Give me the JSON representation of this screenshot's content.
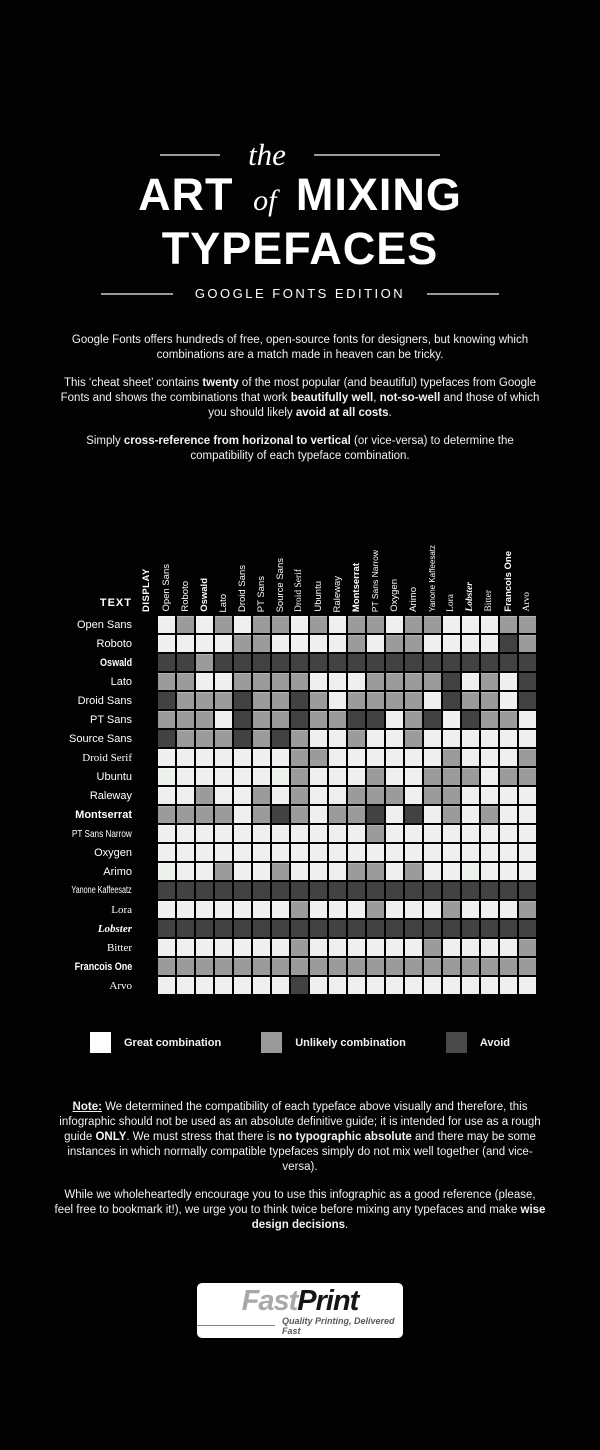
{
  "title": {
    "pre": "the",
    "art": "ART",
    "of": "of",
    "mixing": "MIXING",
    "line2": "TYPEFACES",
    "subtitle": "GOOGLE FONTS EDITION"
  },
  "intro": {
    "p1": [
      {
        "t": "Google Fonts offers hundreds of free, open-source fonts for designers, but knowing which combinations are a match made in heaven can be tricky."
      }
    ],
    "p2": [
      {
        "t": "This ‘cheat sheet’ contains "
      },
      {
        "t": "twenty",
        "b": 1
      },
      {
        "t": " of the most popular (and beautiful) typefaces from Google Fonts and shows the combinations that work "
      },
      {
        "t": "beautifully well",
        "b": 1
      },
      {
        "t": ", "
      },
      {
        "t": "not-so-well",
        "b": 1
      },
      {
        "t": " and those of which you should likely "
      },
      {
        "t": "avoid at all costs",
        "b": 1
      },
      {
        "t": "."
      }
    ],
    "p3": [
      {
        "t": "Simply "
      },
      {
        "t": "cross-reference from horizonal to vertical",
        "b": 1
      },
      {
        "t": " (or vice-versa) to determine the compatibility of each typeface combination."
      }
    ]
  },
  "matrix": {
    "display_label": "DISPLAY",
    "text_label": "TEXT",
    "font_styles": [
      "sans",
      "sans",
      "condb",
      "sans",
      "sans",
      "sans",
      "sans",
      "serif",
      "sans",
      "sans",
      "sansb",
      "cond",
      "sans",
      "sans",
      "conds",
      "serif",
      "script",
      "serif",
      "condb",
      "serif"
    ],
    "cell_colors": {
      "0": "#edf0ed",
      "1": "#9b9b9b",
      "2": "#424242"
    },
    "legend": [
      {
        "label": "Great combination",
        "color": "#fdfdfd"
      },
      {
        "label": "Unlikely combination",
        "color": "#9a9a9a"
      },
      {
        "label": "Avoid",
        "color": "#4a4a4a"
      }
    ]
  },
  "chart_data": {
    "type": "heatmap",
    "title": "the ART of MIXING TYPEFACES — GOOGLE FONTS EDITION",
    "x_axis_label": "DISPLAY",
    "y_axis_label": "TEXT",
    "x_categories": [
      "Open Sans",
      "Roboto",
      "Oswald",
      "Lato",
      "Droid Sans",
      "PT Sans",
      "Source Sans",
      "Droid Serif",
      "Ubuntu",
      "Raleway",
      "Montserrat",
      "PT Sans Narrow",
      "Oxygen",
      "Arimo",
      "Yanone Kaffeesatz",
      "Lora",
      "Lobster",
      "Bitter",
      "Francois One",
      "Arvo"
    ],
    "y_categories": [
      "Open Sans",
      "Roboto",
      "Oswald",
      "Lato",
      "Droid Sans",
      "PT Sans",
      "Source Sans",
      "Droid Serif",
      "Ubuntu",
      "Raleway",
      "Montserrat",
      "PT Sans Narrow",
      "Oxygen",
      "Arimo",
      "Yanone Kaffeesatz",
      "Lora",
      "Lobster",
      "Bitter",
      "Francois One",
      "Arvo"
    ],
    "value_legend": {
      "0": "Great combination",
      "1": "Unlikely combination",
      "2": "Avoid"
    },
    "legend_position": "bottom",
    "values": [
      [
        0,
        1,
        0,
        1,
        0,
        1,
        1,
        0,
        1,
        0,
        1,
        1,
        0,
        1,
        1,
        0,
        0,
        0,
        1,
        1
      ],
      [
        0,
        0,
        0,
        0,
        1,
        1,
        0,
        0,
        0,
        0,
        1,
        0,
        1,
        1,
        0,
        0,
        0,
        0,
        2,
        1
      ],
      [
        2,
        2,
        1,
        2,
        2,
        2,
        2,
        2,
        2,
        2,
        2,
        2,
        2,
        2,
        2,
        2,
        2,
        2,
        2,
        2
      ],
      [
        1,
        1,
        0,
        0,
        1,
        1,
        1,
        1,
        0,
        0,
        0,
        1,
        1,
        1,
        1,
        2,
        0,
        1,
        0,
        2
      ],
      [
        2,
        1,
        1,
        1,
        2,
        1,
        1,
        2,
        1,
        0,
        1,
        1,
        1,
        1,
        0,
        2,
        1,
        1,
        0,
        2
      ],
      [
        1,
        1,
        1,
        0,
        2,
        1,
        1,
        2,
        1,
        1,
        2,
        2,
        0,
        1,
        2,
        0,
        2,
        1,
        1,
        0
      ],
      [
        2,
        1,
        1,
        1,
        2,
        1,
        2,
        1,
        0,
        0,
        1,
        0,
        0,
        1,
        0,
        0,
        0,
        0,
        0,
        0
      ],
      [
        0,
        0,
        0,
        0,
        0,
        0,
        0,
        1,
        1,
        0,
        0,
        0,
        0,
        0,
        0,
        1,
        0,
        0,
        0,
        1
      ],
      [
        0,
        0,
        0,
        0,
        0,
        0,
        0,
        1,
        0,
        0,
        0,
        1,
        0,
        0,
        1,
        1,
        1,
        0,
        1,
        1
      ],
      [
        0,
        0,
        1,
        0,
        0,
        1,
        0,
        1,
        0,
        0,
        1,
        1,
        1,
        0,
        1,
        1,
        0,
        0,
        0,
        0
      ],
      [
        1,
        1,
        1,
        1,
        0,
        1,
        2,
        1,
        0,
        1,
        1,
        2,
        0,
        2,
        0,
        1,
        0,
        1,
        0,
        0
      ],
      [
        0,
        0,
        0,
        0,
        0,
        0,
        0,
        0,
        0,
        0,
        0,
        1,
        0,
        0,
        0,
        0,
        0,
        0,
        0,
        0
      ],
      [
        0,
        0,
        0,
        0,
        0,
        0,
        0,
        0,
        0,
        0,
        0,
        0,
        0,
        0,
        0,
        0,
        0,
        0,
        0,
        0
      ],
      [
        0,
        0,
        0,
        1,
        0,
        0,
        1,
        0,
        0,
        0,
        1,
        1,
        0,
        1,
        0,
        0,
        0,
        0,
        0,
        0
      ],
      [
        2,
        2,
        2,
        2,
        2,
        2,
        2,
        2,
        2,
        2,
        2,
        2,
        2,
        2,
        2,
        2,
        2,
        2,
        2,
        2
      ],
      [
        0,
        0,
        0,
        0,
        0,
        0,
        0,
        1,
        0,
        0,
        0,
        1,
        0,
        0,
        0,
        1,
        0,
        0,
        0,
        1
      ],
      [
        2,
        2,
        2,
        2,
        2,
        2,
        2,
        2,
        2,
        2,
        2,
        2,
        2,
        2,
        2,
        2,
        2,
        2,
        2,
        2
      ],
      [
        0,
        0,
        0,
        0,
        0,
        0,
        0,
        1,
        0,
        0,
        0,
        0,
        0,
        0,
        1,
        0,
        0,
        0,
        0,
        1
      ],
      [
        1,
        1,
        1,
        1,
        1,
        1,
        1,
        1,
        1,
        1,
        1,
        1,
        1,
        1,
        1,
        1,
        1,
        1,
        1,
        1
      ],
      [
        0,
        0,
        0,
        0,
        0,
        0,
        0,
        2,
        0,
        0,
        0,
        0,
        0,
        0,
        0,
        0,
        0,
        0,
        0,
        0
      ]
    ]
  },
  "note": {
    "p1": [
      {
        "t": "Note:",
        "b": 1,
        "u": 1
      },
      {
        "t": " We determined the compatibility of each typeface above visually and therefore, this infographic should not be used as an absolute definitive guide; it is intended for use as a rough guide "
      },
      {
        "t": "ONLY",
        "b": 1
      },
      {
        "t": ". We must stress that there is "
      },
      {
        "t": "no typographic absolute",
        "b": 1
      },
      {
        "t": " and there may be some instances in which normally compatible typefaces simply do not mix well together (and vice-versa)."
      }
    ],
    "p2": [
      {
        "t": "While we wholeheartedly encourage you to use this infographic as a good reference (please, feel free to bookmark it!), we urge you to think twice before mixing any typefaces and make "
      },
      {
        "t": "wise design decisions",
        "b": 1
      },
      {
        "t": "."
      }
    ]
  },
  "footer_logo": {
    "fast": "Fast",
    "print": "Print",
    "tagline": "Quality Printing, Delivered Fast"
  }
}
